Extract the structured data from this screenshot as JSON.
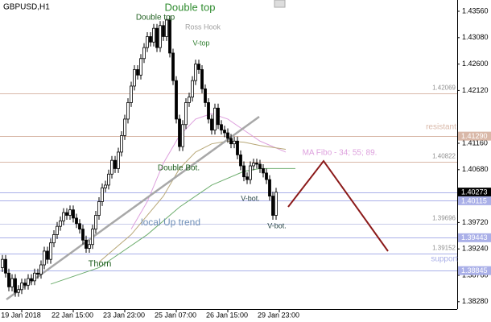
{
  "chart_data": {
    "type": "candlestick",
    "title": "GBPUSD,H1",
    "ylim": [
      1.3816,
      1.43765
    ],
    "yticks": [
      {
        "value": 1.3828,
        "label": "1.38280"
      },
      {
        "value": 1.3876,
        "label": "1.38760"
      },
      {
        "value": 1.3924,
        "label": "1.39240"
      },
      {
        "value": 1.3972,
        "label": "1.39720"
      },
      {
        "value": 1.4068,
        "label": "1.40680"
      },
      {
        "value": 1.4116,
        "label": "1.41160"
      },
      {
        "value": 1.4212,
        "label": "1.42120"
      },
      {
        "value": 1.426,
        "label": "1.42600"
      },
      {
        "value": 1.4308,
        "label": "1.43080"
      },
      {
        "value": 1.4356,
        "label": "1.43560"
      }
    ],
    "xticks": [
      {
        "value": 6,
        "label": "19 Jan 2018"
      },
      {
        "value": 22,
        "label": "22 Jan 15:00"
      },
      {
        "value": 38,
        "label": "23 Jan 23:00"
      },
      {
        "value": 54,
        "label": "25 Jan 07:00"
      },
      {
        "value": 70,
        "label": "26 Jan 15:00"
      },
      {
        "value": 86,
        "label": "29 Jan 23:00"
      }
    ],
    "candles": [
      [
        1.389,
        1.3913,
        1.3882,
        1.3905
      ],
      [
        1.3905,
        1.3913,
        1.3872,
        1.388
      ],
      [
        1.388,
        1.3888,
        1.3847,
        1.3855
      ],
      [
        1.3855,
        1.3878,
        1.3847,
        1.387
      ],
      [
        1.387,
        1.3878,
        1.3837,
        1.3845
      ],
      [
        1.3845,
        1.3858,
        1.3837,
        1.385
      ],
      [
        1.385,
        1.387,
        1.3842,
        1.3862
      ],
      [
        1.3862,
        1.387,
        1.385,
        1.3858
      ],
      [
        1.3858,
        1.3878,
        1.385,
        1.387
      ],
      [
        1.387,
        1.3878,
        1.3858,
        1.3866
      ],
      [
        1.3866,
        1.3888,
        1.3858,
        1.388
      ],
      [
        1.388,
        1.3888,
        1.387,
        1.3878
      ],
      [
        1.3878,
        1.3903,
        1.387,
        1.3895
      ],
      [
        1.3895,
        1.3928,
        1.3887,
        1.392
      ],
      [
        1.392,
        1.3928,
        1.3897,
        1.3905
      ],
      [
        1.3905,
        1.3943,
        1.3897,
        1.3935
      ],
      [
        1.3935,
        1.3958,
        1.3927,
        1.395
      ],
      [
        1.395,
        1.3973,
        1.3942,
        1.3965
      ],
      [
        1.3965,
        1.3983,
        1.3957,
        1.3975
      ],
      [
        1.3975,
        1.3998,
        1.3967,
        1.399
      ],
      [
        1.399,
        1.3998,
        1.3977,
        1.3985
      ],
      [
        1.3985,
        1.4003,
        1.3977,
        1.3995
      ],
      [
        1.3995,
        1.4003,
        1.3972,
        1.398
      ],
      [
        1.398,
        1.3988,
        1.3962,
        1.397
      ],
      [
        1.397,
        1.3978,
        1.3952,
        1.396
      ],
      [
        1.396,
        1.3968,
        1.3932,
        1.394
      ],
      [
        1.394,
        1.3948,
        1.3917,
        1.3925
      ],
      [
        1.3925,
        1.394,
        1.3917,
        1.3932
      ],
      [
        1.3932,
        1.3968,
        1.3924,
        1.396
      ],
      [
        1.396,
        1.3993,
        1.3952,
        1.3985
      ],
      [
        1.3985,
        1.4018,
        1.3977,
        1.401
      ],
      [
        1.401,
        1.4043,
        1.4002,
        1.4035
      ],
      [
        1.4035,
        1.4048,
        1.4027,
        1.404
      ],
      [
        1.404,
        1.4068,
        1.4032,
        1.406
      ],
      [
        1.406,
        1.4093,
        1.4052,
        1.4085
      ],
      [
        1.4085,
        1.4093,
        1.4062,
        1.407
      ],
      [
        1.407,
        1.4108,
        1.4062,
        1.41
      ],
      [
        1.41,
        1.4138,
        1.4092,
        1.413
      ],
      [
        1.413,
        1.4168,
        1.4122,
        1.416
      ],
      [
        1.416,
        1.4198,
        1.4152,
        1.419
      ],
      [
        1.419,
        1.4228,
        1.4182,
        1.422
      ],
      [
        1.422,
        1.4258,
        1.4212,
        1.425
      ],
      [
        1.425,
        1.4258,
        1.4232,
        1.424
      ],
      [
        1.424,
        1.4278,
        1.4232,
        1.427
      ],
      [
        1.427,
        1.4298,
        1.4262,
        1.429
      ],
      [
        1.429,
        1.4318,
        1.4282,
        1.431
      ],
      [
        1.431,
        1.4318,
        1.4292,
        1.43
      ],
      [
        1.43,
        1.4333,
        1.4292,
        1.4325
      ],
      [
        1.4325,
        1.4333,
        1.4282,
        1.429
      ],
      [
        1.429,
        1.4338,
        1.4282,
        1.433
      ],
      [
        1.433,
        1.4338,
        1.4302,
        1.431
      ],
      [
        1.431,
        1.4348,
        1.4302,
        1.434
      ],
      [
        1.434,
        1.4348,
        1.4272,
        1.428
      ],
      [
        1.428,
        1.4288,
        1.4222,
        1.423
      ],
      [
        1.423,
        1.4238,
        1.4152,
        1.416
      ],
      [
        1.416,
        1.4168,
        1.4102,
        1.411
      ],
      [
        1.411,
        1.4158,
        1.4102,
        1.415
      ],
      [
        1.415,
        1.4198,
        1.4142,
        1.419
      ],
      [
        1.419,
        1.4208,
        1.4182,
        1.42
      ],
      [
        1.42,
        1.4238,
        1.4192,
        1.423
      ],
      [
        1.423,
        1.4268,
        1.4222,
        1.426
      ],
      [
        1.426,
        1.4268,
        1.4242,
        1.425
      ],
      [
        1.425,
        1.4258,
        1.4207,
        1.4215
      ],
      [
        1.4215,
        1.4223,
        1.4182,
        1.419
      ],
      [
        1.419,
        1.4198,
        1.4152,
        1.416
      ],
      [
        1.416,
        1.4168,
        1.4132,
        1.414
      ],
      [
        1.414,
        1.4188,
        1.4132,
        1.418
      ],
      [
        1.418,
        1.4188,
        1.4142,
        1.415
      ],
      [
        1.415,
        1.4158,
        1.4132,
        1.414
      ],
      [
        1.414,
        1.4148,
        1.4127,
        1.4135
      ],
      [
        1.4135,
        1.4143,
        1.4117,
        1.4125
      ],
      [
        1.4125,
        1.4133,
        1.4107,
        1.4115
      ],
      [
        1.4115,
        1.4128,
        1.4107,
        1.412
      ],
      [
        1.412,
        1.4128,
        1.4087,
        1.4095
      ],
      [
        1.4095,
        1.4103,
        1.4067,
        1.4075
      ],
      [
        1.4075,
        1.4083,
        1.4047,
        1.4055
      ],
      [
        1.4055,
        1.4063,
        1.4042,
        1.405
      ],
      [
        1.405,
        1.4083,
        1.4042,
        1.4075
      ],
      [
        1.4075,
        1.4088,
        1.4067,
        1.408
      ],
      [
        1.408,
        1.4088,
        1.407,
        1.4078
      ],
      [
        1.4078,
        1.4086,
        1.4062,
        1.407
      ],
      [
        1.407,
        1.4078,
        1.4054,
        1.4062
      ],
      [
        1.4062,
        1.407,
        1.4042,
        1.405
      ],
      [
        1.405,
        1.4058,
        1.4012,
        1.402
      ],
      [
        1.402,
        1.4028,
        1.3977,
        1.3985
      ],
      [
        1.3985,
        1.4035,
        1.3977,
        1.4027
      ]
    ],
    "moving_averages": [
      {
        "color": "#dda0dd",
        "x": [
          40,
          45,
          50,
          55,
          60,
          65,
          70,
          75,
          80,
          88
        ],
        "values": [
          1.396,
          1.401,
          1.408,
          1.413,
          1.416,
          1.417,
          1.416,
          1.414,
          1.412,
          1.41
        ]
      },
      {
        "color": "#b8a878",
        "x": [
          30,
          40,
          50,
          55,
          60,
          65,
          70,
          75,
          80,
          88
        ],
        "values": [
          1.39,
          1.395,
          1.402,
          1.407,
          1.41,
          1.4115,
          1.412,
          1.4118,
          1.4112,
          1.4105
        ]
      },
      {
        "color": "#6fae6f",
        "x": [
          15,
          30,
          45,
          55,
          65,
          75,
          80,
          91
        ],
        "values": [
          1.386,
          1.389,
          1.395,
          1.4,
          1.404,
          1.4065,
          1.407,
          1.407
        ]
      }
    ],
    "levels": [
      {
        "value": 1.42069,
        "label": "1.42069",
        "color": "#d9b8a8"
      },
      {
        "value": 1.4129,
        "color": "#d9b8a8"
      },
      {
        "value": 1.40822,
        "label": "1.40822",
        "color": "#d9b8a8"
      },
      {
        "value": 1.40273,
        "color": "#aab0e8"
      },
      {
        "value": 1.40115,
        "color": "#aab0e8"
      },
      {
        "value": 1.39696,
        "label": "1.39696",
        "color": "#c8cce8"
      },
      {
        "value": 1.39443,
        "color": "#aab0e8"
      },
      {
        "value": 1.39152,
        "label": "1.39152",
        "color": "#aab0e8"
      },
      {
        "value": 1.38845,
        "color": "#aab0e8"
      }
    ],
    "price_boxes": [
      {
        "value": 1.4129,
        "label": "1.41290",
        "color": "#d9b8a8"
      },
      {
        "value": 1.40273,
        "label": "1.40273",
        "color": "#000000"
      },
      {
        "value": 1.40115,
        "label": "1.40115",
        "color": "#aab0e8"
      },
      {
        "value": 1.39443,
        "label": "1.39443",
        "color": "#aab0e8"
      },
      {
        "value": 1.38845,
        "label": "1.38845",
        "color": "#aab0e8"
      }
    ],
    "annotations": [
      {
        "text": "Double top",
        "color": "#2e8b2e"
      },
      {
        "text": "Double top",
        "color": "#1f5f1f"
      },
      {
        "text": "Ross Hook",
        "color": "#a0a0a0"
      },
      {
        "text": "V-top",
        "color": "#2e7d2e"
      },
      {
        "text": "Double Bot.",
        "color": "#1f5f1f"
      },
      {
        "text": "V-bot.",
        "color": "#1f3f3f"
      },
      {
        "text": "V-bot.",
        "color": "#1f3f3f"
      },
      {
        "text": "local  Up trend",
        "color": "#7090b8"
      },
      {
        "text": "Thorn",
        "color": "#1f5f1f"
      },
      {
        "text": "MA Fibo - 34; 55; 89.",
        "color": "#dda0dd"
      },
      {
        "text": "resistant",
        "color": "#d9b8a8"
      },
      {
        "text": "support",
        "color": "#aab0e8"
      }
    ]
  }
}
